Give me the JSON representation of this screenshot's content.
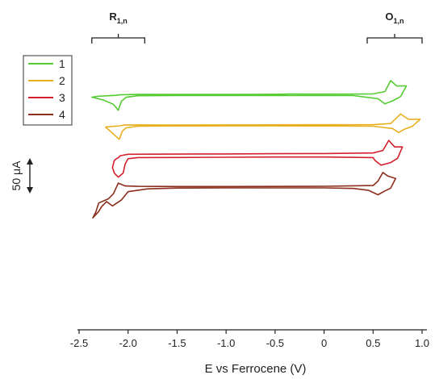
{
  "chart_data": {
    "type": "line",
    "subtype": "cyclic-voltammogram",
    "title": "",
    "xlabel": "E vs Ferrocene (V)",
    "ylabel": "",
    "xlim": [
      -2.5,
      1.0
    ],
    "xticks": [
      -2.5,
      -2.0,
      -1.5,
      -1.0,
      -0.5,
      0,
      0.5,
      1.0
    ],
    "xtick_labels": [
      "-2.5",
      "-2.0",
      "-1.5",
      "-1.0",
      "-0.5",
      "0",
      "0.5",
      "1.0"
    ],
    "y_axis_visible": false,
    "grid": false,
    "legend": {
      "position": "top-left",
      "framed": true
    },
    "vertical_offset_between_traces": true,
    "scale_bar": {
      "value_uA": 50,
      "label": "50 μA"
    },
    "brackets": [
      {
        "label": "R",
        "subscript": "1,n",
        "x_range": [
          -2.37,
          -1.83
        ]
      },
      {
        "label": "O",
        "subscript": "1,n",
        "x_range": [
          0.44,
          1.0
        ]
      }
    ],
    "series": [
      {
        "name": "1",
        "color": "#55cc33",
        "baseline_uA": 0,
        "forward_sweep": [
          [
            -2.37,
            -2.8
          ],
          [
            -2.3,
            -1.5
          ],
          [
            -2.2,
            -0.8
          ],
          [
            -2.12,
            -0.2
          ],
          [
            -2.09,
            0.5
          ],
          [
            -1.9,
            1.0
          ],
          [
            -1.5,
            1.0
          ],
          [
            -1.0,
            1.0
          ],
          [
            -0.5,
            1.2
          ],
          [
            -0.35,
            1.6
          ],
          [
            0,
            1.5
          ],
          [
            0.3,
            1.5
          ],
          [
            0.5,
            1.8
          ],
          [
            0.62,
            5
          ],
          [
            0.68,
            20.5
          ],
          [
            0.74,
            13
          ],
          [
            0.84,
            13
          ]
        ],
        "reverse_sweep": [
          [
            0.84,
            13
          ],
          [
            0.78,
            -2
          ],
          [
            0.7,
            -8
          ],
          [
            0.62,
            -12.3
          ],
          [
            0.55,
            -5
          ],
          [
            0.3,
            -0.6
          ],
          [
            0,
            -0.4
          ],
          [
            -0.5,
            -0.4
          ],
          [
            -1.0,
            -0.4
          ],
          [
            -1.5,
            -0.5
          ],
          [
            -1.9,
            -0.8
          ],
          [
            -2.02,
            -3
          ],
          [
            -2.07,
            -9
          ],
          [
            -2.1,
            -21.2
          ],
          [
            -2.15,
            -13
          ],
          [
            -2.25,
            -7
          ],
          [
            -2.37,
            -2.8
          ]
        ]
      },
      {
        "name": "2",
        "color": "#e8b020",
        "baseline_uA": -43,
        "forward_sweep": [
          [
            -2.23,
            -2.0
          ],
          [
            -2.15,
            -1.0
          ],
          [
            -2.08,
            -0.2
          ],
          [
            -2.05,
            0.8
          ],
          [
            -1.9,
            1.1
          ],
          [
            -1.5,
            1.0
          ],
          [
            -1.0,
            1.1
          ],
          [
            -0.5,
            1.2
          ],
          [
            0,
            1.3
          ],
          [
            0.5,
            1.4
          ],
          [
            0.68,
            3
          ],
          [
            0.78,
            16.5
          ],
          [
            0.86,
            9
          ],
          [
            0.98,
            9
          ]
        ],
        "reverse_sweep": [
          [
            0.98,
            9
          ],
          [
            0.9,
            -1
          ],
          [
            0.82,
            -5
          ],
          [
            0.76,
            -9.6
          ],
          [
            0.7,
            -4
          ],
          [
            0.5,
            -0.8
          ],
          [
            0,
            -0.4
          ],
          [
            -0.5,
            -0.3
          ],
          [
            -1.0,
            -0.3
          ],
          [
            -1.5,
            -0.4
          ],
          [
            -1.9,
            -0.8
          ],
          [
            -2.02,
            -3
          ],
          [
            -2.06,
            -8
          ],
          [
            -2.09,
            -19.3
          ],
          [
            -2.14,
            -13
          ],
          [
            -2.18,
            -8
          ],
          [
            -2.23,
            -2.0
          ]
        ]
      },
      {
        "name": "3",
        "color": "#d4202c",
        "baseline_uA": -87,
        "forward_sweep": [
          [
            -2.16,
            -15
          ],
          [
            -2.14,
            -5
          ],
          [
            -2.12,
            -2.7
          ],
          [
            -2.1,
            -1.2
          ],
          [
            -2.08,
            1.7
          ],
          [
            -2.0,
            3.7
          ],
          [
            -1.5,
            3.9
          ],
          [
            -1.0,
            4.2
          ],
          [
            -0.5,
            4.5
          ],
          [
            0,
            4.7
          ],
          [
            0.5,
            5.5
          ],
          [
            0.6,
            9
          ],
          [
            0.66,
            23.2
          ],
          [
            0.72,
            14
          ],
          [
            0.8,
            14
          ]
        ],
        "reverse_sweep": [
          [
            0.8,
            14
          ],
          [
            0.75,
            -2
          ],
          [
            0.68,
            -8
          ],
          [
            0.58,
            -11.6
          ],
          [
            0.52,
            -5
          ],
          [
            0.5,
            -1
          ],
          [
            0,
            -0.2
          ],
          [
            -0.5,
            -0.2
          ],
          [
            -1.0,
            -0.5
          ],
          [
            -1.5,
            -0.8
          ],
          [
            -1.9,
            -1.0
          ],
          [
            -2.0,
            -2.5
          ],
          [
            -2.03,
            -10
          ],
          [
            -2.05,
            -22.8
          ],
          [
            -2.1,
            -28.6
          ],
          [
            -2.14,
            -23
          ],
          [
            -2.16,
            -15
          ]
        ]
      },
      {
        "name": "4",
        "color": "#8b2e1c",
        "baseline_uA": -130,
        "forward_sweep": [
          [
            -2.36,
            -43
          ],
          [
            -2.33,
            -35
          ],
          [
            -2.3,
            -22
          ],
          [
            -2.2,
            -16
          ],
          [
            -2.15,
            -9
          ],
          [
            -2.1,
            6
          ],
          [
            -2.03,
            2
          ],
          [
            -1.9,
            1.5
          ],
          [
            -1.5,
            1.2
          ],
          [
            -1.0,
            1.3
          ],
          [
            -0.5,
            1.4
          ],
          [
            0,
            1.6
          ],
          [
            0.5,
            2.6
          ],
          [
            0.55,
            9
          ],
          [
            0.6,
            21
          ],
          [
            0.65,
            16
          ],
          [
            0.73,
            12.5
          ]
        ],
        "reverse_sweep": [
          [
            0.73,
            12.5
          ],
          [
            0.68,
            -1
          ],
          [
            0.62,
            -5
          ],
          [
            0.55,
            -10.3
          ],
          [
            0.45,
            -4
          ],
          [
            0.3,
            -1.5
          ],
          [
            0,
            -0.7
          ],
          [
            -0.5,
            -0.7
          ],
          [
            -1.0,
            -0.7
          ],
          [
            -1.5,
            -0.9
          ],
          [
            -1.8,
            -2
          ],
          [
            -2.0,
            -6
          ],
          [
            -2.07,
            -18
          ],
          [
            -2.16,
            -26.1
          ],
          [
            -2.22,
            -20
          ],
          [
            -2.27,
            -27
          ],
          [
            -2.3,
            -34
          ],
          [
            -2.36,
            -43
          ]
        ]
      }
    ]
  }
}
